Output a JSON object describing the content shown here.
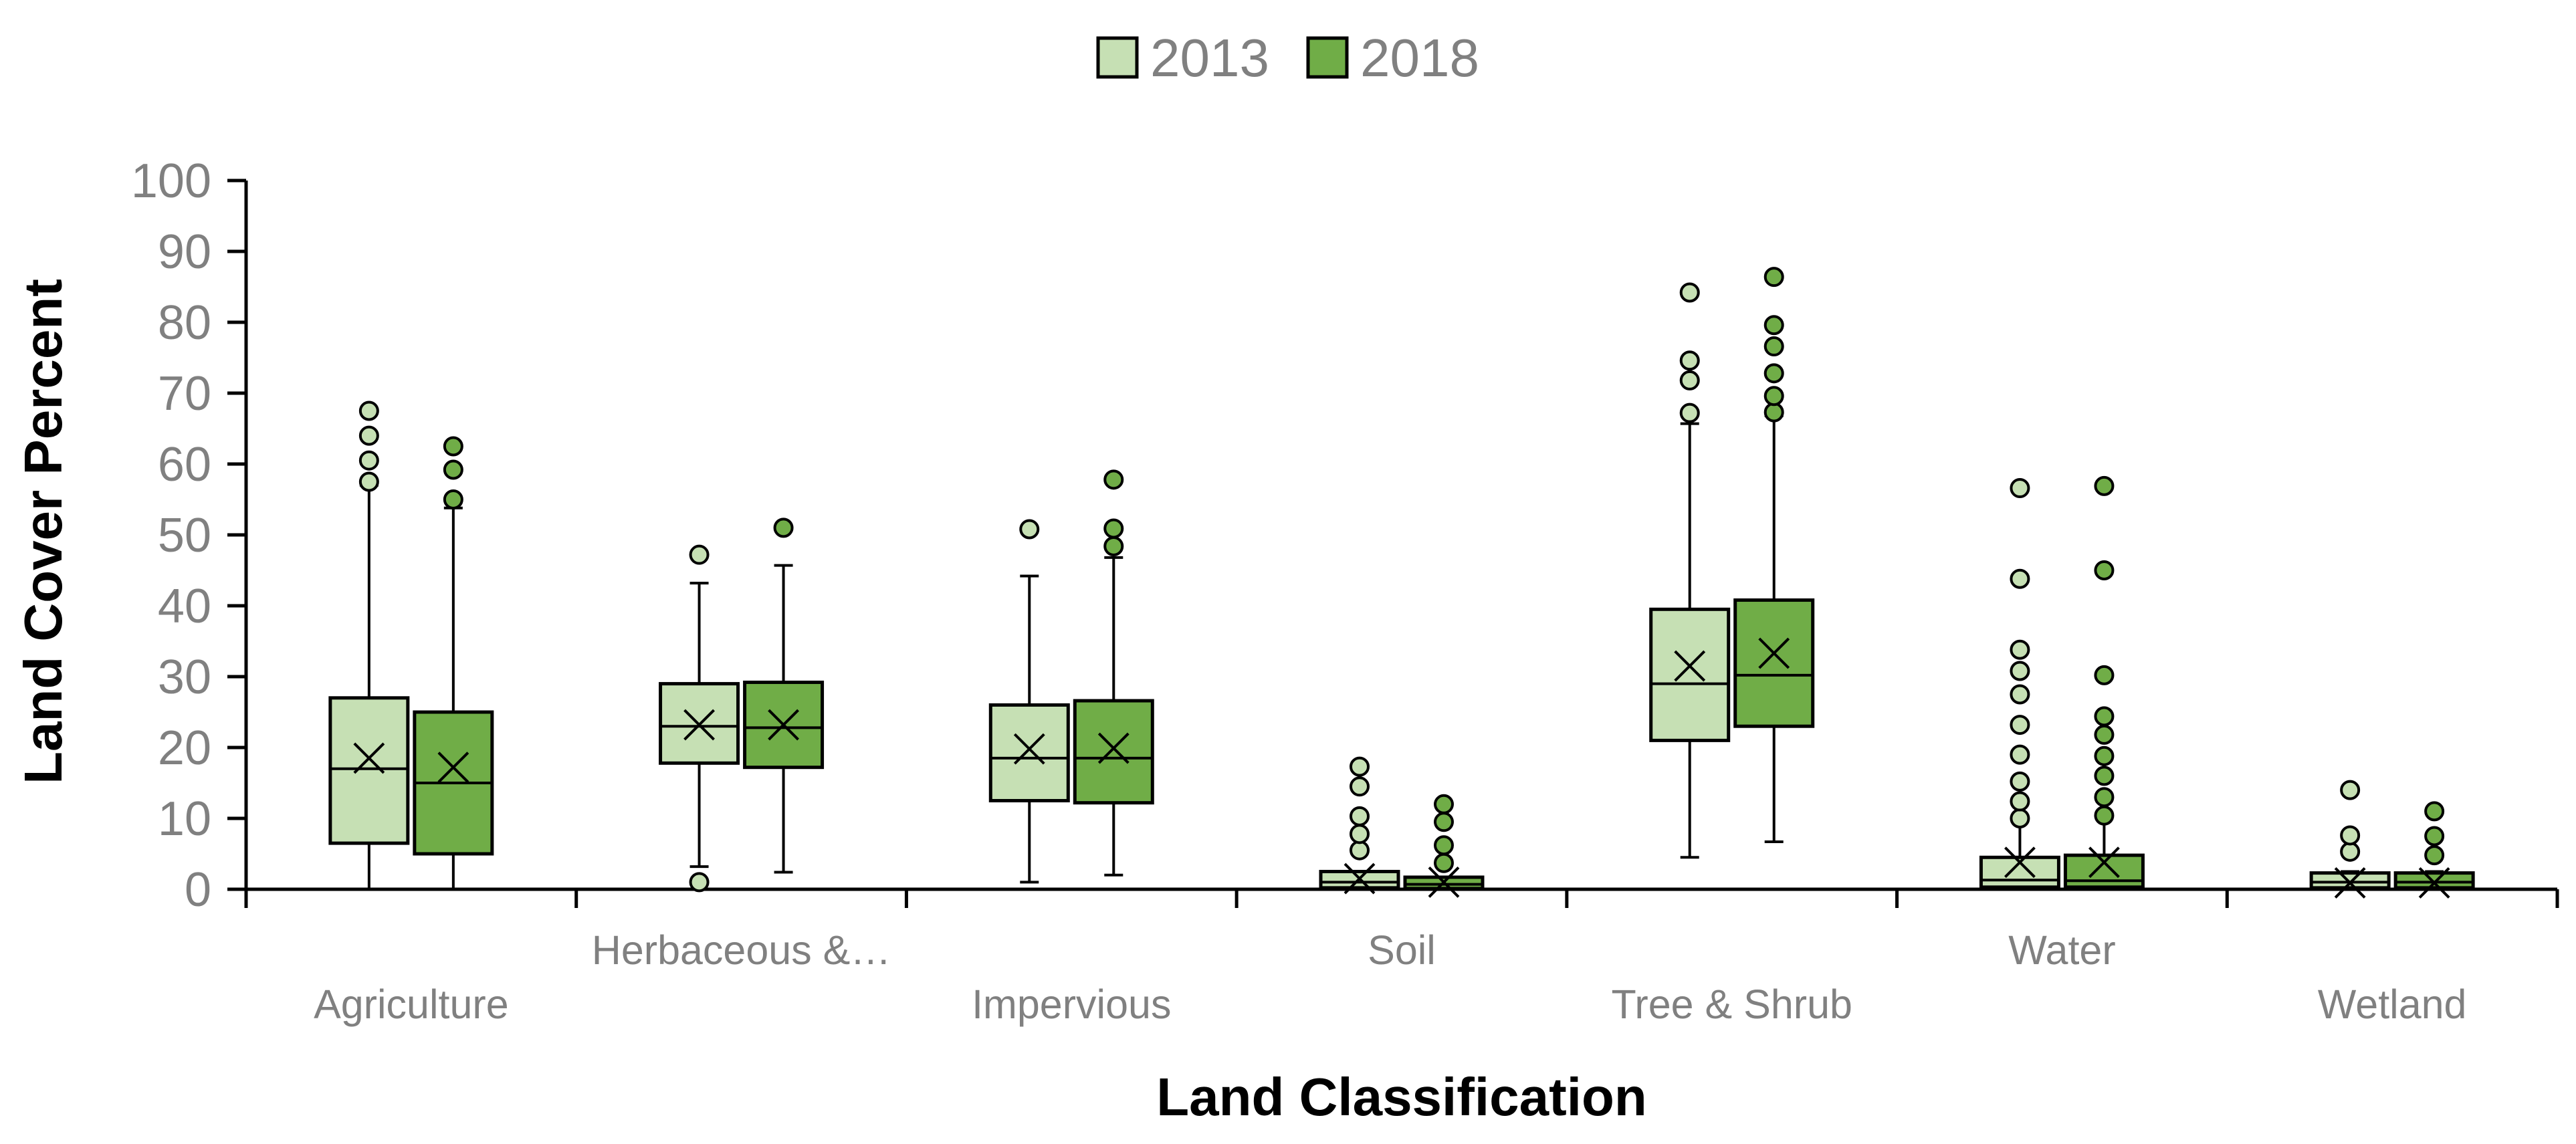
{
  "chart_data": {
    "type": "box",
    "title": "",
    "xlabel": "Land Classification",
    "ylabel": "Land Cover Percent",
    "ylim": [
      0,
      100
    ],
    "yticks": [
      0,
      10,
      20,
      30,
      40,
      50,
      60,
      70,
      80,
      90,
      100
    ],
    "grid": false,
    "legend_position": "top-center",
    "categories": [
      "Agriculture",
      "Herbaceous &…",
      "Impervious",
      "Soil",
      "Tree & Shrub",
      "Water",
      "Wetland"
    ],
    "series": [
      {
        "name": "2013",
        "color": "#c6e0b4",
        "boxes": [
          {
            "min": 0,
            "q1": 6.5,
            "median": 17,
            "q3": 27,
            "max": 57,
            "mean": 18.5,
            "outliers": [
              57.5,
              60.5,
              64,
              67.5
            ]
          },
          {
            "min": 3.2,
            "q1": 17.8,
            "median": 23,
            "q3": 29,
            "max": 43.2,
            "mean": 23.2,
            "outliers": [
              1,
              47.2
            ]
          },
          {
            "min": 1,
            "q1": 12.5,
            "median": 18.5,
            "q3": 26,
            "max": 44.2,
            "mean": 19.8,
            "outliers": [
              50.8
            ]
          },
          {
            "min": 0,
            "q1": 0.2,
            "median": 1,
            "q3": 2.5,
            "max": 2.5,
            "mean": 1.5,
            "outliers": [
              5.5,
              7.8,
              10.3,
              14.5,
              17.3
            ]
          },
          {
            "min": 4.5,
            "q1": 21,
            "median": 29,
            "q3": 39.5,
            "max": 65.7,
            "mean": 31.5,
            "outliers": [
              67.2,
              71.8,
              74.6,
              84.2
            ]
          },
          {
            "min": 0,
            "q1": 0.3,
            "median": 1.3,
            "q3": 4.5,
            "max": 10,
            "mean": 3.8,
            "outliers": [
              10,
              12.4,
              15.2,
              19,
              23.2,
              27.5,
              30.8,
              33.8,
              43.8,
              56.6
            ]
          },
          {
            "min": 0,
            "q1": 0.2,
            "median": 1,
            "q3": 2.3,
            "max": 2.5,
            "mean": 0.9,
            "outliers": [
              5.3,
              7.6,
              14
            ]
          }
        ]
      },
      {
        "name": "2018",
        "color": "#70ad47",
        "boxes": [
          {
            "min": 0,
            "q1": 5,
            "median": 15,
            "q3": 25,
            "max": 53.8,
            "mean": 17.2,
            "outliers": [
              55,
              59.2,
              62.5
            ]
          },
          {
            "min": 2.4,
            "q1": 17.2,
            "median": 22.8,
            "q3": 29.2,
            "max": 45.7,
            "mean": 23.2,
            "outliers": [
              51
            ]
          },
          {
            "min": 2,
            "q1": 12.2,
            "median": 18.5,
            "q3": 26.6,
            "max": 46.8,
            "mean": 19.9,
            "outliers": [
              48.4,
              50.9,
              57.8
            ]
          },
          {
            "min": 0,
            "q1": 0.1,
            "median": 0.7,
            "q3": 1.7,
            "max": 1.7,
            "mean": 1,
            "outliers": [
              3.7,
              6.2,
              9.5,
              12
            ]
          },
          {
            "min": 6.7,
            "q1": 23,
            "median": 30.2,
            "q3": 40.8,
            "max": 66.8,
            "mean": 33.3,
            "outliers": [
              67.3,
              69.6,
              72.8,
              76.6,
              79.6,
              86.4
            ]
          },
          {
            "min": 0,
            "q1": 0.3,
            "median": 1.2,
            "q3": 4.8,
            "max": 10.2,
            "mean": 3.8,
            "outliers": [
              10.4,
              13,
              16,
              18.8,
              21.8,
              24.4,
              30.2,
              45,
              56.9
            ]
          },
          {
            "min": 0,
            "q1": 0.2,
            "median": 1,
            "q3": 2.3,
            "max": 2.5,
            "mean": 0.9,
            "outliers": [
              4.8,
              7.5,
              11
            ]
          }
        ]
      }
    ]
  }
}
